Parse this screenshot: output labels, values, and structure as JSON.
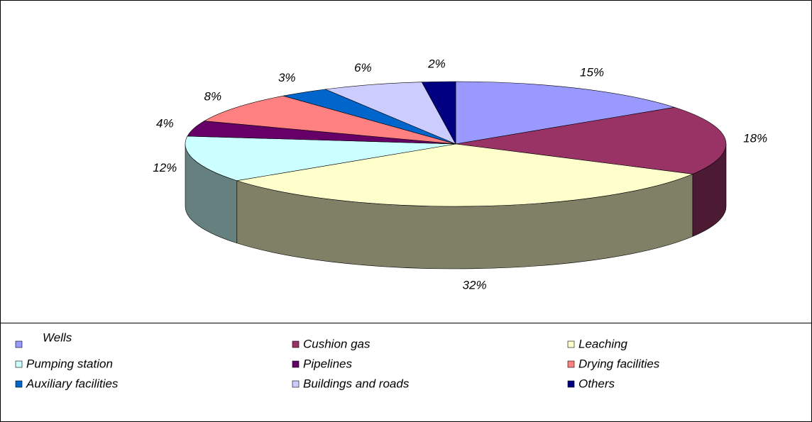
{
  "chart_data": {
    "type": "pie",
    "three_d": true,
    "legend": "bottom",
    "categories": [
      "Wells",
      "Cushion gas",
      "Leaching",
      "Pumping station",
      "Pipelines",
      "Drying facilities",
      "Auxiliary facilities",
      "Buildings and roads",
      "Others"
    ],
    "values": [
      15,
      18,
      32,
      12,
      4,
      8,
      3,
      6,
      2
    ],
    "value_labels": [
      "15%",
      "18%",
      "32%",
      "12%",
      "4%",
      "8%",
      "3%",
      "6%",
      "2%"
    ],
    "colors": [
      "#9999ff",
      "#993366",
      "#ffffcc",
      "#ccffff",
      "#660066",
      "#ff8080",
      "#0066cc",
      "#ccccff",
      "#000080"
    ]
  }
}
